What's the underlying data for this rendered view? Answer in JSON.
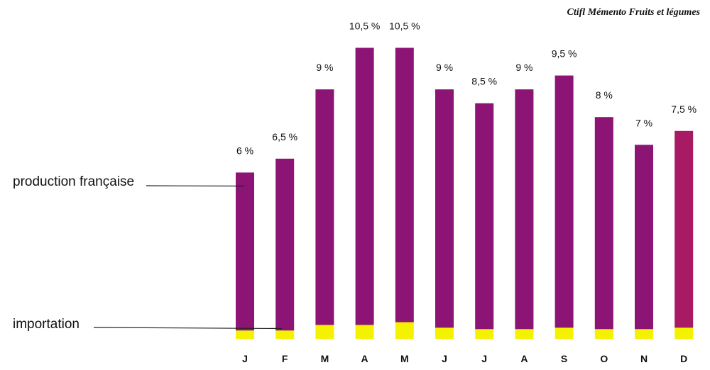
{
  "source_note": "Ctifl Mémento Fruits et légumes",
  "colors": {
    "production": "#8c1474",
    "production_last": "#a81a64",
    "importation": "#f5f200",
    "text": "#111111",
    "leader": "#222222"
  },
  "chart_data": {
    "type": "bar",
    "stacked": true,
    "categories": [
      "J",
      "F",
      "M",
      "A",
      "M",
      "J",
      "J",
      "A",
      "S",
      "O",
      "N",
      "D"
    ],
    "total_labels": [
      "6 %",
      "6,5 %",
      "9 %",
      "10,5 %",
      "10,5 %",
      "9 %",
      "8,5 %",
      "9 %",
      "9,5 %",
      "8 %",
      "7 %",
      "7,5 %"
    ],
    "totals": [
      6,
      6.5,
      9,
      10.5,
      10.5,
      9,
      8.5,
      9,
      9.5,
      8,
      7,
      7.5
    ],
    "series": [
      {
        "name": "importation",
        "values": [
          0.3,
          0.3,
          0.5,
          0.5,
          0.6,
          0.4,
          0.35,
          0.35,
          0.4,
          0.35,
          0.35,
          0.4
        ]
      },
      {
        "name": "production française",
        "values": [
          5.7,
          6.2,
          8.5,
          10.0,
          9.9,
          8.6,
          8.15,
          8.65,
          9.1,
          7.65,
          6.65,
          7.1
        ]
      }
    ],
    "legend": [
      "production française",
      "importation"
    ],
    "legend_placement": "left, with leader lines",
    "ylim": [
      0,
      11
    ],
    "grid": false,
    "xlabel": "",
    "ylabel": ""
  }
}
